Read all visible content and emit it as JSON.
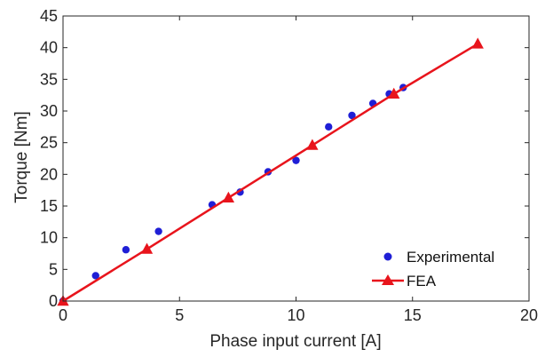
{
  "chart_data": {
    "type": "scatter",
    "title": "",
    "xlabel": "Phase input current [A]",
    "ylabel": "Torque [Nm]",
    "xlim": [
      0,
      20
    ],
    "ylim": [
      0,
      45
    ],
    "xticks": [
      0,
      5,
      10,
      15,
      20
    ],
    "yticks": [
      0,
      5,
      10,
      15,
      20,
      25,
      30,
      35,
      40,
      45
    ],
    "grid": false,
    "legend_position": "bottom-right",
    "series": [
      {
        "name": "Experimental",
        "mode": "markers",
        "marker": "circle",
        "color": "#1f1fd6",
        "x": [
          0,
          1.4,
          2.7,
          4.1,
          6.4,
          7.6,
          8.8,
          10.0,
          11.4,
          12.4,
          13.3,
          14.0,
          14.6
        ],
        "y": [
          0,
          4.0,
          8.1,
          11.0,
          15.2,
          17.2,
          20.4,
          22.2,
          27.5,
          29.3,
          31.2,
          32.7,
          33.7
        ]
      },
      {
        "name": "FEA",
        "mode": "lines+markers",
        "marker": "triangle",
        "color": "#e8141c",
        "x": [
          0,
          3.6,
          7.1,
          10.7,
          14.2,
          17.8
        ],
        "y": [
          0,
          8.2,
          16.3,
          24.6,
          32.7,
          40.6
        ]
      }
    ]
  }
}
